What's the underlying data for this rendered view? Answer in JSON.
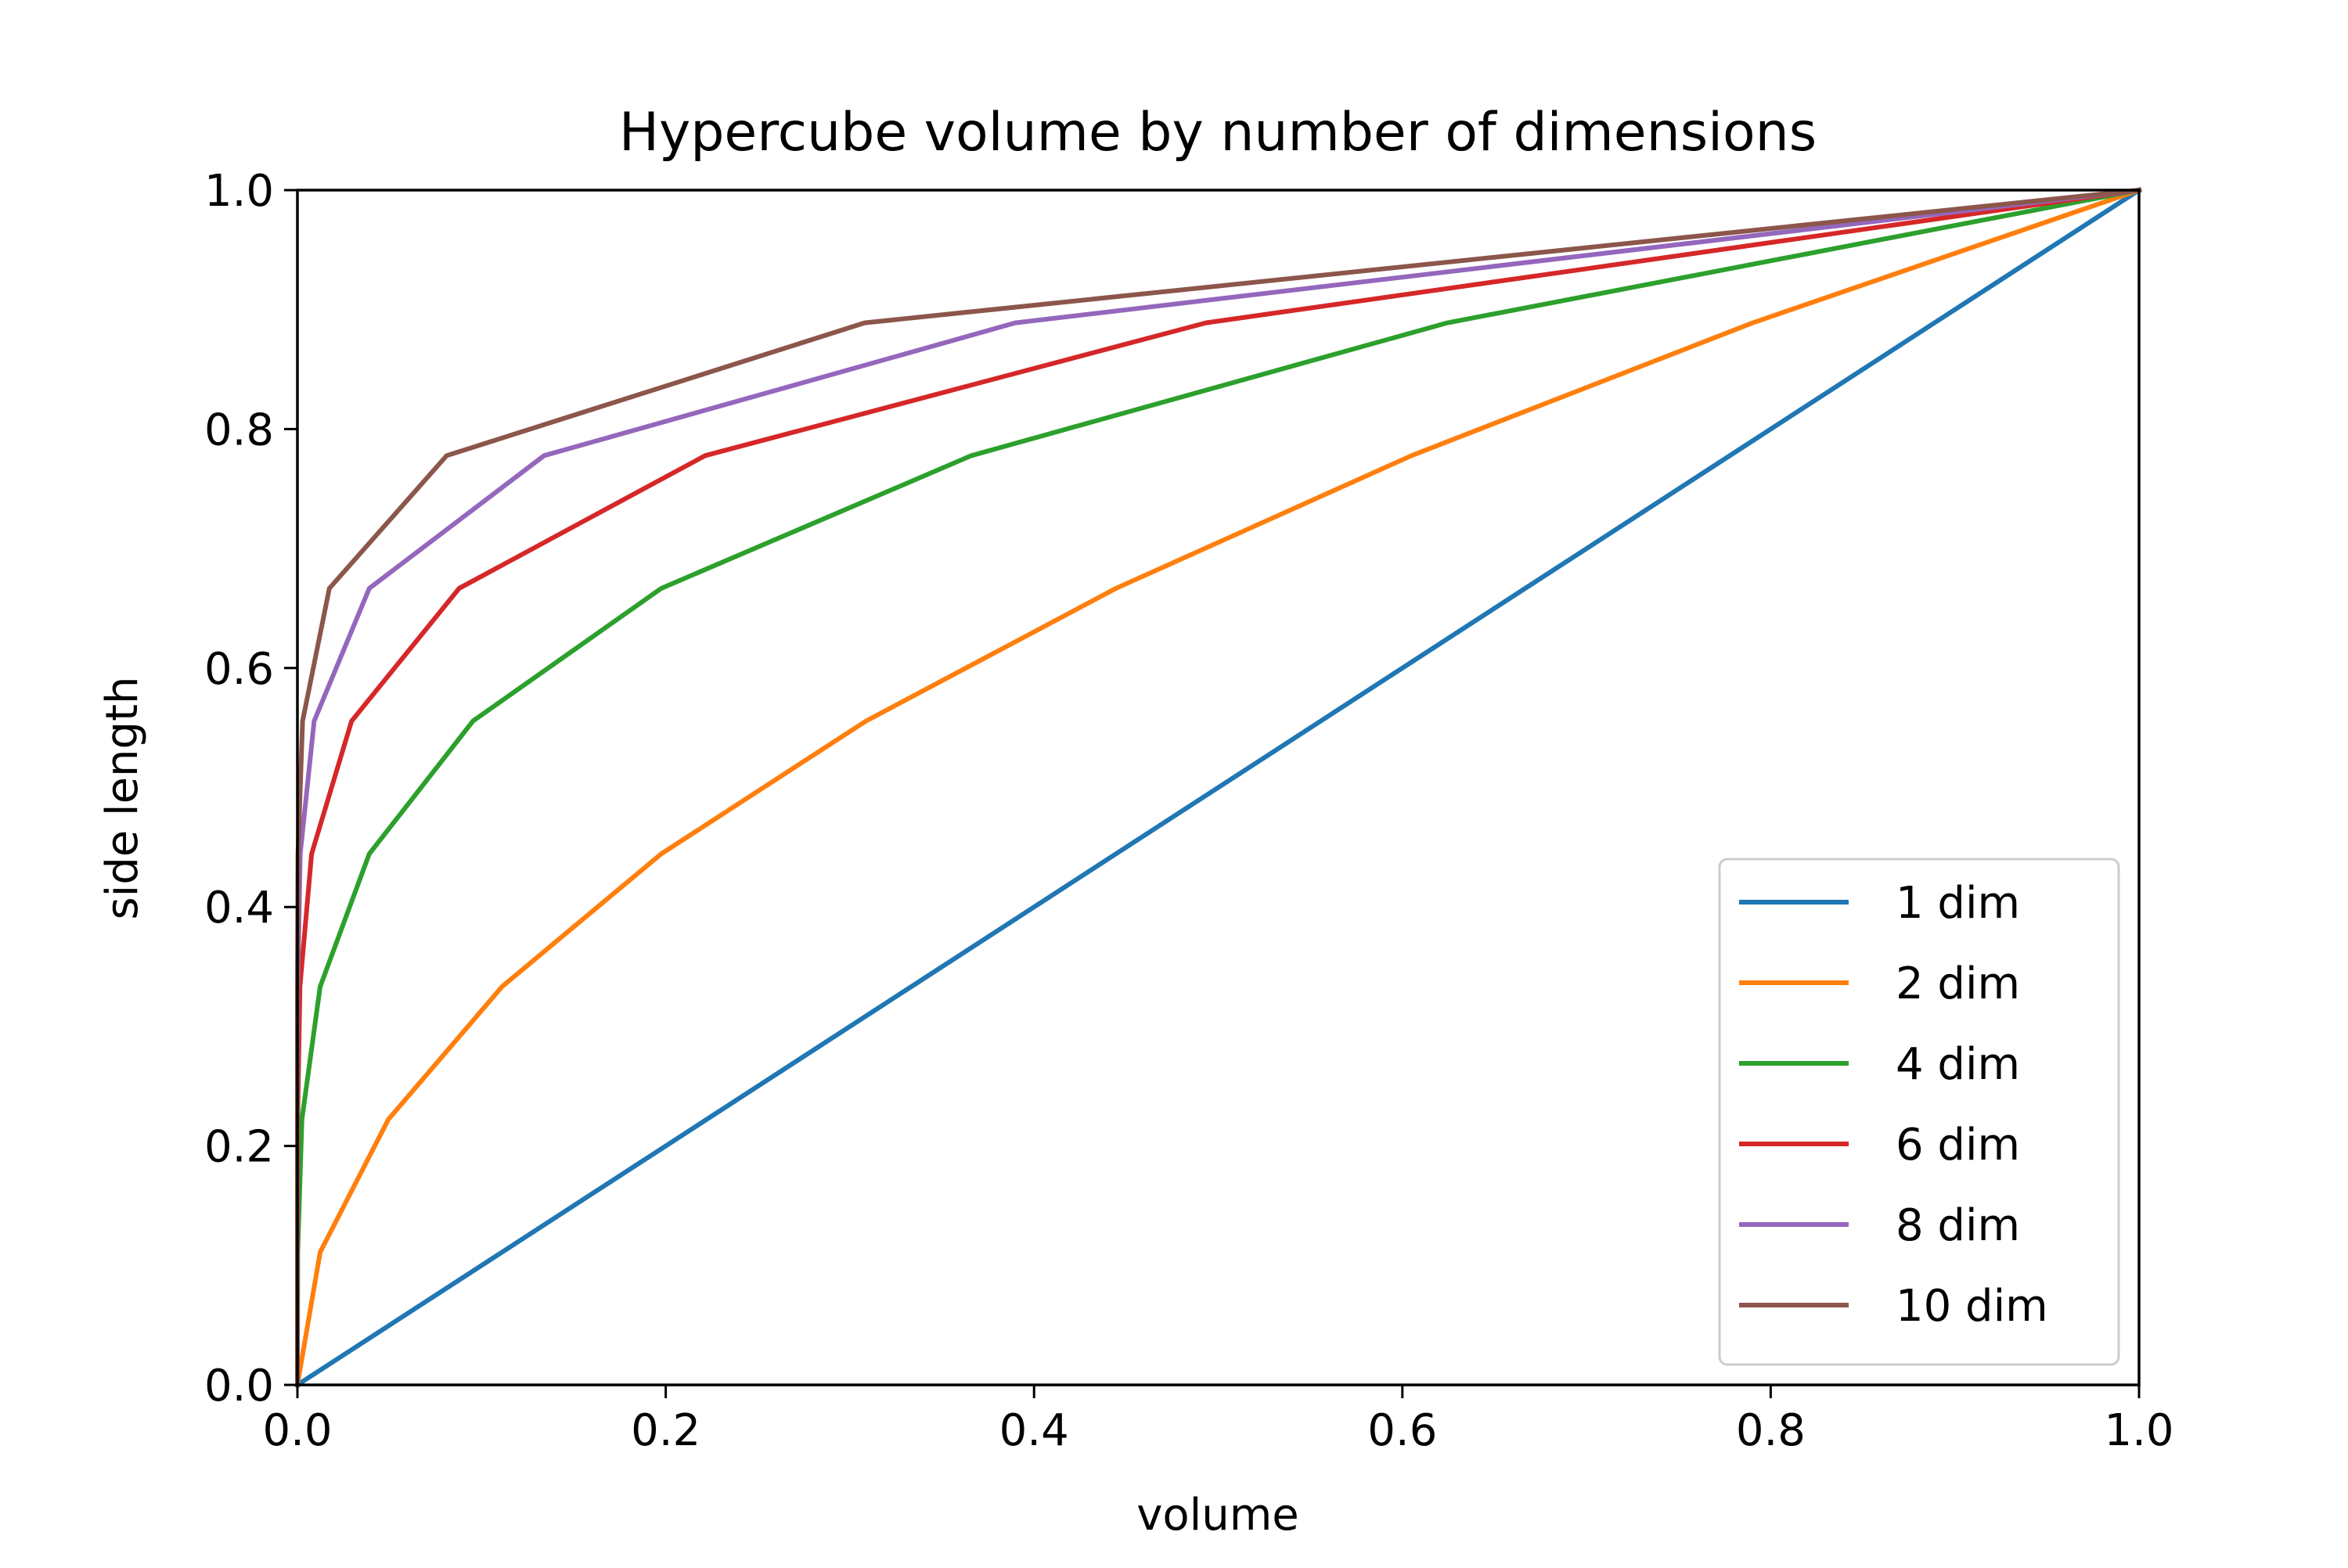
{
  "chart_data": {
    "type": "line",
    "title": "Hypercube volume by number of dimensions",
    "xlabel": "volume",
    "ylabel": "side length",
    "xlim": [
      0.0,
      1.0
    ],
    "ylim": [
      0.0,
      1.0
    ],
    "x_ticks": [
      "0.0",
      "0.2",
      "0.4",
      "0.6",
      "0.8",
      "1.0"
    ],
    "y_ticks": [
      "0.0",
      "0.2",
      "0.4",
      "0.6",
      "0.8",
      "1.0"
    ],
    "grid": false,
    "legend_position": "lower-right",
    "side_lengths": [
      0.0,
      0.1111,
      0.2222,
      0.3333,
      0.4444,
      0.5556,
      0.6667,
      0.7778,
      0.8889,
      1.0
    ],
    "series": [
      {
        "name": "1 dim",
        "dimension": 1,
        "color": "#1f77b4"
      },
      {
        "name": "2 dim",
        "dimension": 2,
        "color": "#ff7f0e"
      },
      {
        "name": "4 dim",
        "dimension": 4,
        "color": "#2ca02c"
      },
      {
        "name": "6 dim",
        "dimension": 6,
        "color": "#d62728"
      },
      {
        "name": "8 dim",
        "dimension": 8,
        "color": "#9467bd"
      },
      {
        "name": "10 dim",
        "dimension": 10,
        "color": "#8c564b"
      }
    ]
  }
}
